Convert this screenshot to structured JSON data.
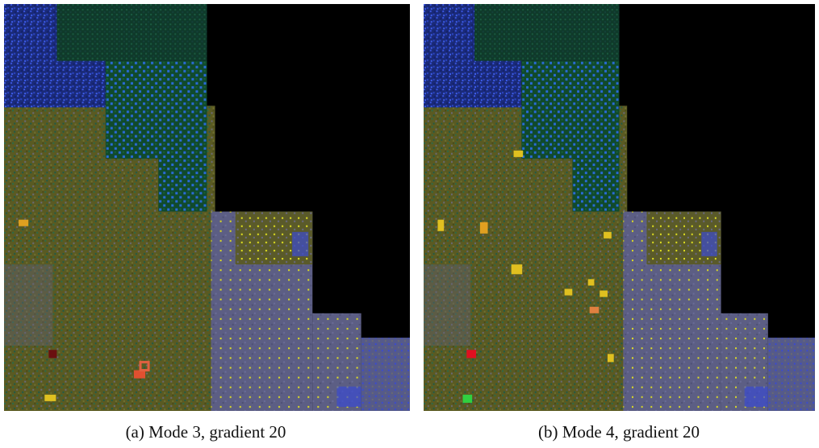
{
  "panels": [
    {
      "caption": "(a) Mode 3, gradient 20"
    },
    {
      "caption": "(b) Mode 4, gradient 20"
    }
  ]
}
